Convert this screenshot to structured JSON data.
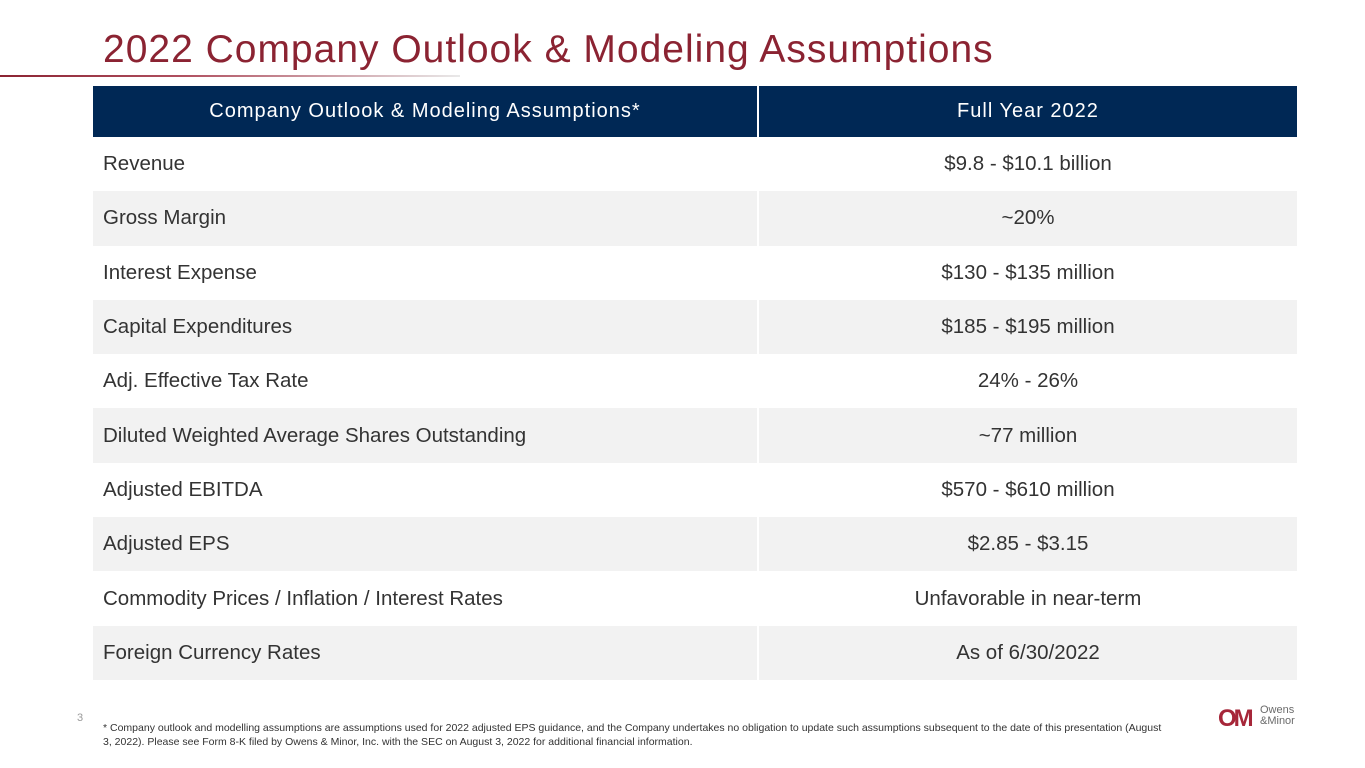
{
  "slide": {
    "title": "2022 Company Outlook & Modeling Assumptions",
    "page_number": "3",
    "footnote": "* Company outlook and modelling assumptions are assumptions used for 2022 adjusted EPS guidance, and the Company undertakes no obligation to update such assumptions subsequent to the date of this presentation (August 3, 2022). Please see Form 8-K filed by Owens & Minor, Inc. with the SEC on August 3, 2022 for additional financial information."
  },
  "table": {
    "headers": [
      "Company Outlook & Modeling Assumptions*",
      "Full Year 2022"
    ],
    "rows": [
      {
        "label": "Revenue",
        "value": "$9.8 - $10.1 billion"
      },
      {
        "label": "Gross Margin",
        "value": "~20%"
      },
      {
        "label": "Interest Expense",
        "value": "$130 - $135 million"
      },
      {
        "label": "Capital Expenditures",
        "value": "$185 - $195 million"
      },
      {
        "label": "Adj. Effective Tax Rate",
        "value": "24% - 26%"
      },
      {
        "label": "Diluted Weighted Average Shares Outstanding",
        "value": "~77 million"
      },
      {
        "label": "Adjusted EBITDA",
        "value": "$570 - $610 million"
      },
      {
        "label": "Adjusted EPS",
        "value": "$2.85 - $3.15"
      },
      {
        "label": "Commodity Prices / Inflation / Interest Rates",
        "value": "Unfavorable in near-term"
      },
      {
        "label": "Foreign Currency Rates",
        "value": "As of 6/30/2022"
      }
    ]
  },
  "logo": {
    "mark": "OM",
    "line1": "Owens",
    "line2": "&Minor"
  },
  "colors": {
    "title": "#8b2332",
    "header_bg": "#002855",
    "alt_row": "#f2f2f2",
    "logo": "#a62639"
  }
}
